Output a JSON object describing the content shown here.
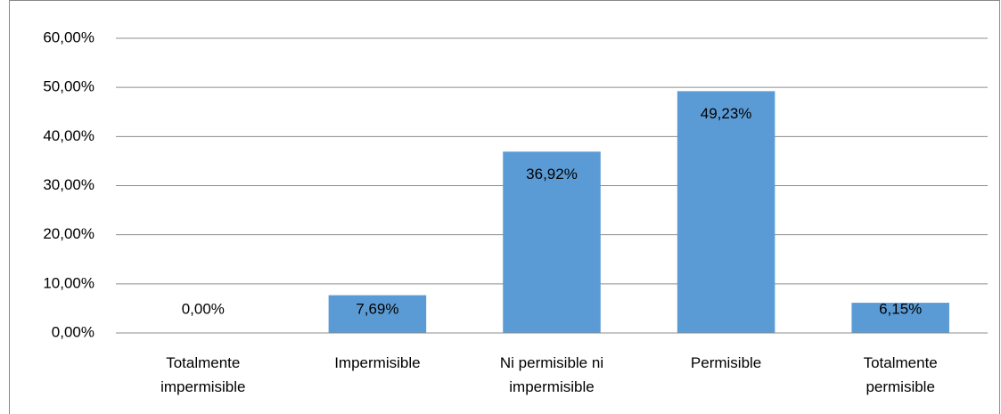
{
  "chart_data": {
    "type": "bar",
    "categories": [
      "Totalmente impermisible",
      "Impermisible",
      "Ni permisible ni impermisible",
      "Permisible",
      "Totalmente permisible"
    ],
    "values": [
      0,
      7.69,
      36.92,
      49.23,
      6.15
    ],
    "value_labels": [
      "0,00%",
      "7,69%",
      "36,92%",
      "49,23%",
      "6,15%"
    ],
    "color": "#5b9bd5",
    "ylim": [
      0,
      60
    ],
    "yticks": [
      {
        "value": 0,
        "label": "0,00%"
      },
      {
        "value": 10,
        "label": "10,00%"
      },
      {
        "value": 20,
        "label": "20,00%"
      },
      {
        "value": 30,
        "label": "30,00%"
      },
      {
        "value": 40,
        "label": "40,00%"
      },
      {
        "value": 50,
        "label": "50,00%"
      },
      {
        "value": 60,
        "label": "60,00%"
      }
    ],
    "grid": true
  }
}
